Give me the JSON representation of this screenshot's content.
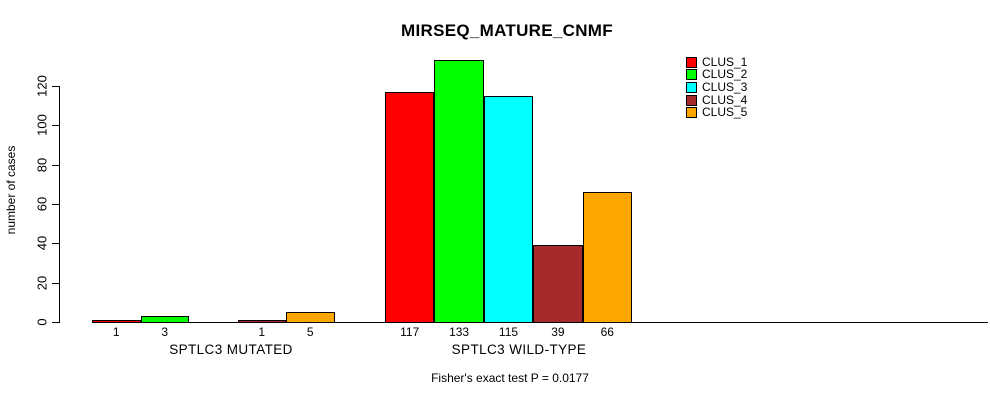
{
  "title": "MIRSEQ_MATURE_CNMF",
  "y_axis": {
    "label": "number of cases",
    "ticks": [
      0,
      20,
      40,
      60,
      80,
      100,
      120
    ]
  },
  "footer": "Fisher's exact test P = 0.0177",
  "legend": [
    {
      "label": "CLUS_1",
      "color": "#FF0000"
    },
    {
      "label": "CLUS_2",
      "color": "#00FF00"
    },
    {
      "label": "CLUS_3",
      "color": "#00FFFF"
    },
    {
      "label": "CLUS_4",
      "color": "#A52A2A"
    },
    {
      "label": "CLUS_5",
      "color": "#FFA500"
    }
  ],
  "chart_data": {
    "type": "bar",
    "title": "MIRSEQ_MATURE_CNMF",
    "categories": [
      "SPTLC3 MUTATED",
      "SPTLC3 WILD-TYPE"
    ],
    "series": [
      {
        "name": "CLUS_1",
        "color": "#FF0000",
        "values": [
          1,
          117
        ]
      },
      {
        "name": "CLUS_2",
        "color": "#00FF00",
        "values": [
          3,
          133
        ]
      },
      {
        "name": "CLUS_3",
        "color": "#00FFFF",
        "values": [
          0,
          115
        ]
      },
      {
        "name": "CLUS_4",
        "color": "#A52A2A",
        "values": [
          1,
          39
        ]
      },
      {
        "name": "CLUS_5",
        "color": "#FFA500",
        "values": [
          5,
          66
        ]
      }
    ],
    "bar_value_labels": [
      [
        "1",
        "3",
        "",
        "1",
        "5"
      ],
      [
        "117",
        "133",
        "115",
        "39",
        "66"
      ]
    ],
    "xlabel": "",
    "ylabel": "number of cases",
    "ylim": [
      0,
      133
    ],
    "yticks": [
      0,
      20,
      40,
      60,
      80,
      100,
      120
    ],
    "grid": false,
    "legend_position": "top-right-inside",
    "annotation": "Fisher's exact test P = 0.0177",
    "bar_border_color": "#000000",
    "background_color": "#FFFFFF"
  }
}
